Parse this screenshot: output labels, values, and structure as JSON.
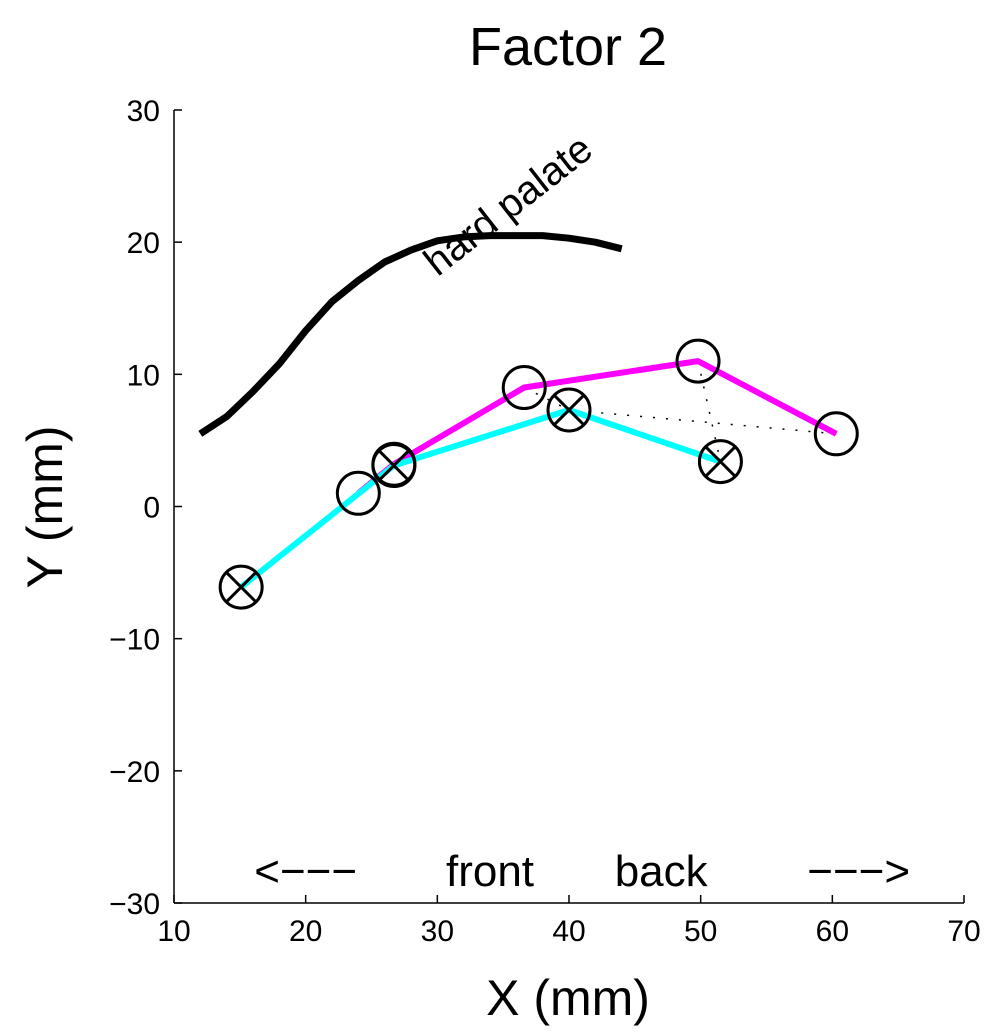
{
  "chart_data": {
    "type": "line",
    "title": "Factor 2",
    "xlabel": "X (mm)",
    "ylabel": "Y (mm)",
    "xlim": [
      10,
      70
    ],
    "ylim": [
      -30,
      30
    ],
    "x_ticks": [
      10,
      20,
      30,
      40,
      50,
      60,
      70
    ],
    "y_ticks": [
      -30,
      -20,
      -10,
      0,
      10,
      20,
      30
    ],
    "x_tick_labels": [
      "10",
      "20",
      "30",
      "40",
      "50",
      "60",
      "70"
    ],
    "y_tick_labels": [
      "−30",
      "−20",
      "−10",
      "0",
      "10",
      "20",
      "30"
    ],
    "grid": false,
    "colors": {
      "palate": "#000000",
      "circle_series": "#ff00ff",
      "crossed_series": "#00ffff",
      "markers": "#000000",
      "connectors": "#000000"
    },
    "series": [
      {
        "color": "#000000",
        "marker": "none",
        "points": [
          [
            12,
            5.5
          ],
          [
            14,
            6.8
          ],
          [
            16,
            8.7
          ],
          [
            18,
            10.8
          ],
          [
            20,
            13.3
          ],
          [
            22,
            15.5
          ],
          [
            24,
            17.1
          ],
          [
            26,
            18.5
          ],
          [
            28,
            19.4
          ],
          [
            30,
            20.1
          ],
          [
            32,
            20.4
          ],
          [
            34,
            20.5
          ],
          [
            36,
            20.5
          ],
          [
            38,
            20.5
          ],
          [
            40,
            20.3
          ],
          [
            42,
            20.0
          ],
          [
            44,
            19.5
          ]
        ]
      },
      {
        "color": "#ff00ff",
        "marker": "circle",
        "points": [
          [
            24,
            1
          ],
          [
            26.7,
            3.2
          ],
          [
            36.6,
            9
          ],
          [
            49.8,
            11
          ],
          [
            60.3,
            5.5
          ]
        ]
      },
      {
        "color": "#00ffff",
        "marker": "crossed-circle",
        "points": [
          [
            15.1,
            -6.1
          ],
          [
            26.7,
            3.1
          ],
          [
            40,
            7.3
          ],
          [
            51.5,
            3.4
          ]
        ]
      }
    ],
    "connectors": [
      [
        [
          24,
          1
        ],
        [
          15.1,
          -6.1
        ]
      ],
      [
        [
          26.7,
          3.2
        ],
        [
          26.7,
          3.1
        ]
      ],
      [
        [
          36.6,
          9
        ],
        [
          40,
          7.3
        ]
      ],
      [
        [
          49.8,
          11
        ],
        [
          51.5,
          3.4
        ]
      ],
      [
        [
          60.3,
          5.5
        ],
        [
          40,
          7.3
        ]
      ]
    ],
    "annotations": [
      {
        "text": "hard palate",
        "x": 36,
        "y": 22,
        "rotate": -38
      },
      {
        "text": "<−−−",
        "x": 20,
        "y": -28.7
      },
      {
        "text": "front",
        "x": 34,
        "y": -28.7
      },
      {
        "text": "back",
        "x": 47,
        "y": -28.7
      },
      {
        "text": "−−−>",
        "x": 62,
        "y": -28.7
      }
    ]
  }
}
